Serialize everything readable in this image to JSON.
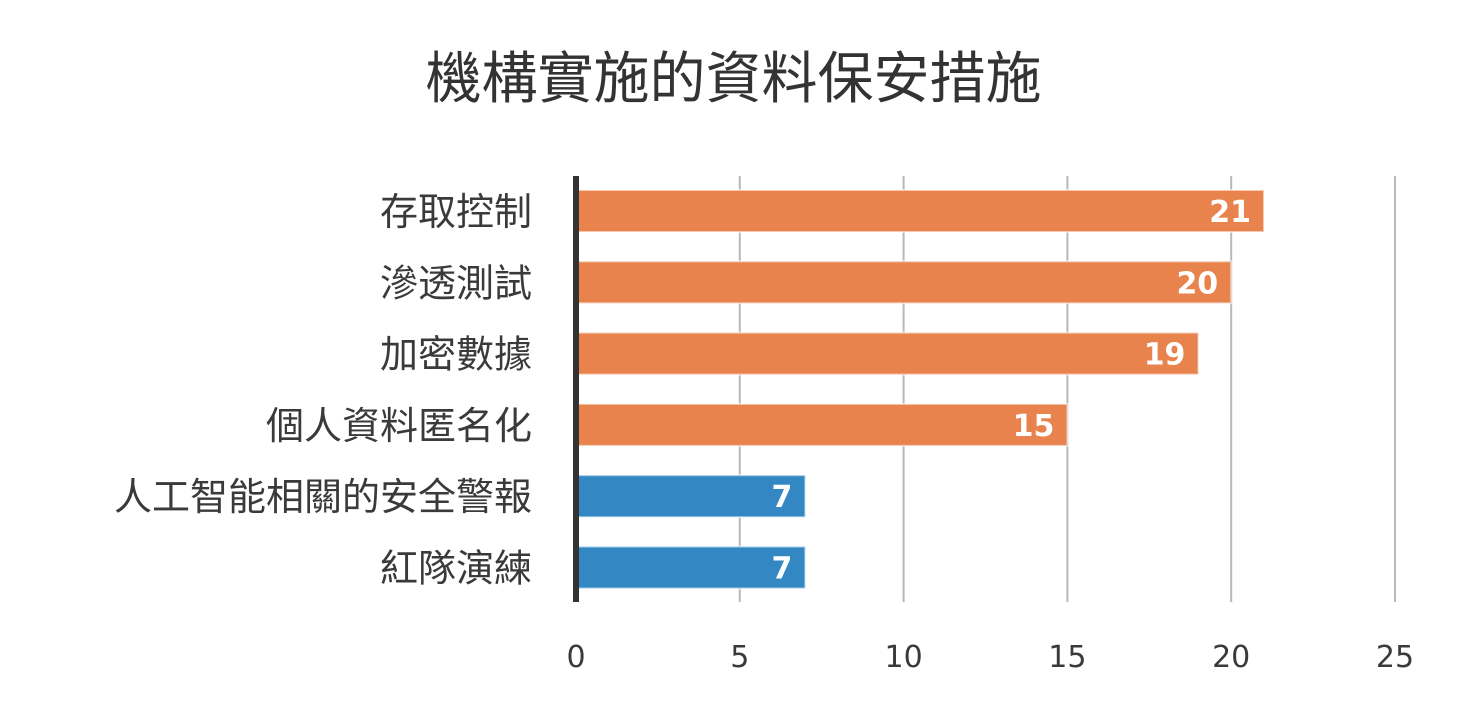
{
  "chart_data": {
    "type": "bar",
    "orientation": "horizontal",
    "title": "機構實施的資料保安措施",
    "categories": [
      "存取控制",
      "滲透測試",
      "加密數據",
      "個人資料匿名化",
      "人工智能相關的安全警報",
      "紅隊演練"
    ],
    "values": [
      21,
      20,
      19,
      15,
      7,
      7
    ],
    "bar_colors": [
      "#e8834e",
      "#e8834e",
      "#e8834e",
      "#e8834e",
      "#3388c4",
      "#3388c4"
    ],
    "xlim": [
      0,
      25
    ],
    "x_ticks": [
      0,
      5,
      10,
      15,
      20,
      25
    ],
    "xlabel": "",
    "ylabel": "",
    "grid": true,
    "data_labels": true,
    "legend": "none"
  }
}
